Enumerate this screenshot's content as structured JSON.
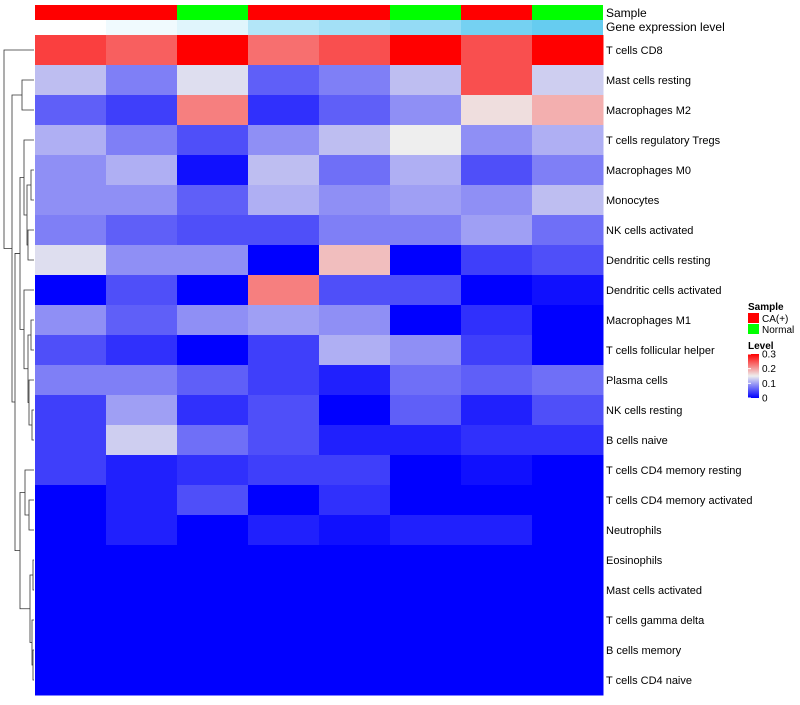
{
  "chart_data": {
    "type": "heatmap",
    "title": "",
    "annotation_tracks": [
      {
        "name": "Sample",
        "values": [
          "CA(+)",
          "CA(+)",
          "Normal",
          "CA(+)",
          "CA(+)",
          "Normal",
          "CA(+)",
          "Normal"
        ],
        "colors": {
          "CA(+)": "#ff0000",
          "Normal": "#00ff00"
        }
      },
      {
        "name": "Gene expression level",
        "values": [
          0.0,
          0.02,
          0.04,
          0.1,
          0.12,
          0.14,
          0.18,
          0.2
        ],
        "colors": {
          "low": "#ffffff",
          "high": "#66ccf0"
        }
      }
    ],
    "rows": [
      "T cells CD8",
      "Mast cells resting",
      "Macrophages M2",
      "T cells regulatory  Tregs",
      "Macrophages M0",
      "Monocytes",
      "NK cells activated",
      "Dendritic cells resting",
      "Dendritic cells activated",
      "Macrophages M1",
      "T cells follicular helper",
      "Plasma cells",
      "NK cells resting",
      "B cells naive",
      "T cells CD4 memory resting",
      "T cells CD4 memory activated",
      "Neutrophils",
      "Eosinophils",
      "Mast cells activated",
      "T cells gamma delta",
      "B cells memory",
      "T cells CD4 naive"
    ],
    "values": [
      [
        0.26,
        0.24,
        0.3,
        0.23,
        0.25,
        0.3,
        0.25,
        0.3
      ],
      [
        0.12,
        0.08,
        0.14,
        0.06,
        0.08,
        0.12,
        0.25,
        0.13
      ],
      [
        0.06,
        0.04,
        0.22,
        0.03,
        0.06,
        0.09,
        0.16,
        0.19
      ],
      [
        0.11,
        0.08,
        0.05,
        0.09,
        0.12,
        0.15,
        0.09,
        0.11
      ],
      [
        0.09,
        0.11,
        0.01,
        0.12,
        0.07,
        0.11,
        0.05,
        0.08
      ],
      [
        0.09,
        0.09,
        0.06,
        0.11,
        0.09,
        0.1,
        0.09,
        0.12
      ],
      [
        0.08,
        0.06,
        0.05,
        0.05,
        0.08,
        0.08,
        0.1,
        0.07
      ],
      [
        0.14,
        0.09,
        0.09,
        0.0,
        0.18,
        0.0,
        0.04,
        0.05
      ],
      [
        0.0,
        0.05,
        0.0,
        0.22,
        0.05,
        0.05,
        0.0,
        0.01
      ],
      [
        0.09,
        0.06,
        0.09,
        0.1,
        0.09,
        0.0,
        0.03,
        0.0
      ],
      [
        0.05,
        0.03,
        0.0,
        0.04,
        0.11,
        0.09,
        0.04,
        0.0
      ],
      [
        0.08,
        0.08,
        0.06,
        0.04,
        0.02,
        0.07,
        0.06,
        0.07
      ],
      [
        0.04,
        0.1,
        0.03,
        0.05,
        0.0,
        0.06,
        0.02,
        0.05
      ],
      [
        0.04,
        0.13,
        0.07,
        0.05,
        0.02,
        0.02,
        0.03,
        0.03
      ],
      [
        0.04,
        0.02,
        0.03,
        0.04,
        0.04,
        0.0,
        0.01,
        0.0
      ],
      [
        0.0,
        0.02,
        0.05,
        0.0,
        0.03,
        0.0,
        0.0,
        0.0
      ],
      [
        0.0,
        0.02,
        0.0,
        0.02,
        0.01,
        0.02,
        0.02,
        0.0
      ],
      [
        0.0,
        0.0,
        0.0,
        0.0,
        0.0,
        0.0,
        0.0,
        0.0
      ],
      [
        0.0,
        0.0,
        0.0,
        0.0,
        0.0,
        0.0,
        0.0,
        0.0
      ],
      [
        0.0,
        0.0,
        0.0,
        0.0,
        0.0,
        0.0,
        0.0,
        0.0
      ],
      [
        0.0,
        0.0,
        0.0,
        0.0,
        0.0,
        0.0,
        0.0,
        0.0
      ],
      [
        0.0,
        0.0,
        0.0,
        0.0,
        0.0,
        0.0,
        0.0,
        0.0
      ]
    ],
    "color_scale": {
      "min": 0,
      "mid": 0.15,
      "max": 0.3,
      "low_color": "#0000ff",
      "mid_color": "#eeeeee",
      "high_color": "#ff0000"
    },
    "dendrogram": "rows",
    "legends": {
      "sample": {
        "title": "Sample",
        "items": [
          "CA(+)",
          "Normal"
        ]
      },
      "level": {
        "title": "Level",
        "ticks": [
          "0.3",
          "0.2",
          "0.1",
          "0"
        ],
        "tick_values": [
          0.3,
          0.2,
          0.1,
          0
        ]
      }
    }
  }
}
